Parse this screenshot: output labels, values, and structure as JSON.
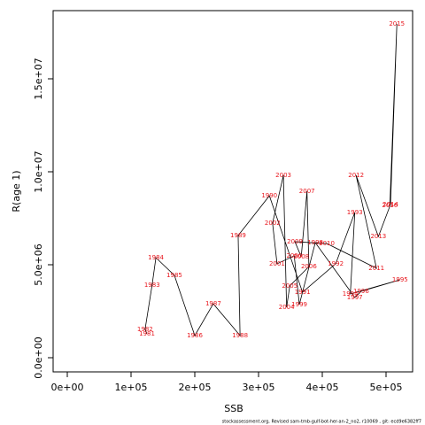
{
  "chart_data": {
    "type": "line",
    "x_label": "SSB",
    "y_label": "R(age 1)",
    "footer": "stockassessment.org, Revised  sam-tmb-gulf-bot-her-an-2_no2, r10069 , git: ecd9e6382ff7",
    "point_labels": [
      "1981",
      "1982",
      "1983",
      "1984",
      "1985",
      "1986",
      "1987",
      "1988",
      "1989",
      "1990",
      "1991",
      "1992",
      "1993",
      "1994",
      "1995",
      "1996",
      "1997",
      "1998",
      "1999",
      "2000",
      "2001",
      "2002",
      "2003",
      "2004",
      "2005",
      "2006",
      "2007",
      "2008",
      "2009",
      "2010",
      "2011",
      "2012",
      "2013",
      "2014",
      "2015",
      "2016"
    ],
    "x": [
      125000,
      122000,
      133000,
      139000,
      168000,
      200000,
      229000,
      271000,
      268000,
      317000,
      369000,
      421000,
      451000,
      444000,
      522000,
      461000,
      451000,
      389000,
      364000,
      356000,
      329000,
      322000,
      339000,
      344000,
      349000,
      379000,
      376000,
      367000,
      357000,
      407000,
      485000,
      453000,
      488000,
      507000,
      517000,
      506000
    ],
    "series": [
      {
        "color": "#000000",
        "label_color": "#e8141b",
        "values": [
          1290000,
          1520000,
          3900000,
          5380000,
          4430000,
          1190000,
          2900000,
          1190000,
          6570000,
          8710000,
          3520000,
          5050000,
          7810000,
          3430000,
          4190000,
          3570000,
          3240000,
          6190000,
          2860000,
          5480000,
          5050000,
          7240000,
          9810000,
          2710000,
          3860000,
          4900000,
          8950000,
          5430000,
          6240000,
          6140000,
          4810000,
          9810000,
          6520000,
          8240000,
          17950000,
          8190000
        ]
      }
    ],
    "xlim": [
      -22222,
      541667
    ],
    "ylim": [
      -761905,
      18666667
    ],
    "xticks": [
      {
        "value": 0,
        "label": "0e+00"
      },
      {
        "value": 100000,
        "label": "1e+05"
      },
      {
        "value": 200000,
        "label": "2e+05"
      },
      {
        "value": 300000,
        "label": "3e+05"
      },
      {
        "value": 400000,
        "label": "4e+05"
      },
      {
        "value": 500000,
        "label": "5e+05"
      }
    ],
    "yticks": [
      {
        "value": 0,
        "label": "0.0e+00"
      },
      {
        "value": 5000000,
        "label": "5.0e+06"
      },
      {
        "value": 10000000,
        "label": "1.0e+07"
      },
      {
        "value": 15000000,
        "label": "1.5e+07"
      }
    ]
  }
}
